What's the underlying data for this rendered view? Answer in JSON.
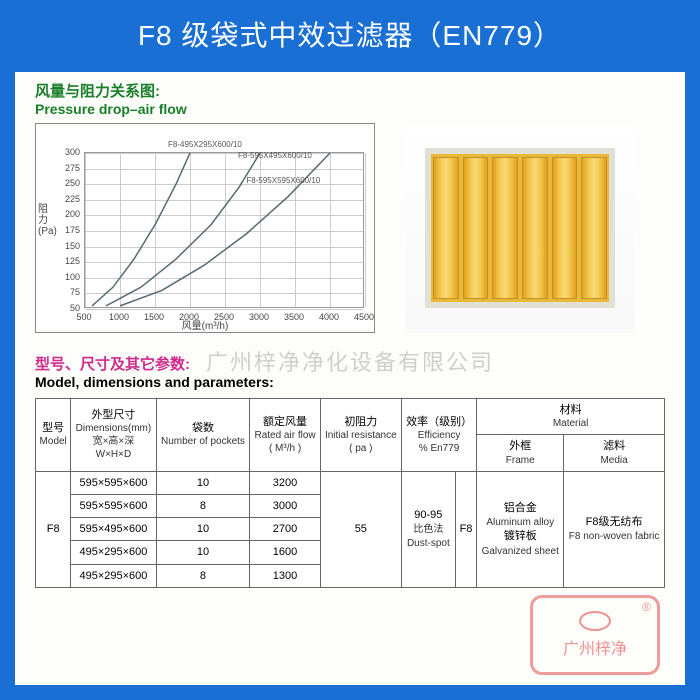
{
  "title": "F8 级袋式中效过滤器（EN779）",
  "chart_section": {
    "heading_cn": "风量与阻力关系图:",
    "heading_en": "Pressure drop–air flow",
    "ylabel_cn": "阻\n力",
    "ylabel_unit": "(Pa)",
    "xlabel": "风量(m³/h)",
    "xlim": [
      500,
      4500
    ],
    "ylim": [
      50,
      300
    ],
    "xticks": [
      500,
      1000,
      1500,
      2000,
      2500,
      3000,
      3500,
      4000,
      4500
    ],
    "yticks": [
      50,
      75,
      100,
      125,
      150,
      175,
      200,
      225,
      250,
      275,
      300
    ],
    "series": [
      {
        "label": "F8-495X295X600/10",
        "label_pos": {
          "x": 0.3,
          "y": 0.05
        },
        "points": [
          [
            600,
            55
          ],
          [
            900,
            85
          ],
          [
            1200,
            130
          ],
          [
            1500,
            185
          ],
          [
            1800,
            250
          ],
          [
            2000,
            300
          ]
        ]
      },
      {
        "label": "F8-595X495X600/10",
        "label_pos": {
          "x": 0.55,
          "y": 0.12
        },
        "points": [
          [
            800,
            55
          ],
          [
            1300,
            85
          ],
          [
            1800,
            130
          ],
          [
            2300,
            185
          ],
          [
            2700,
            245
          ],
          [
            3000,
            300
          ]
        ]
      },
      {
        "label": "F8-595X595X600/10",
        "label_pos": {
          "x": 0.58,
          "y": 0.28
        },
        "points": [
          [
            1000,
            55
          ],
          [
            1600,
            80
          ],
          [
            2200,
            120
          ],
          [
            2800,
            170
          ],
          [
            3400,
            230
          ],
          [
            4000,
            300
          ]
        ]
      }
    ],
    "line_color": "#556a74",
    "grid_color": "#cccccc",
    "background": "#ffffff"
  },
  "product": {
    "pockets": 6,
    "color": "#f4cb52"
  },
  "watermark": "广州梓净净化设备有限公司",
  "spec_section": {
    "heading_cn": "型号、尺寸及其它参数:",
    "heading_en": "Model, dimensions and parameters:"
  },
  "table": {
    "headers": {
      "model": {
        "cn": "型号",
        "en": "Model"
      },
      "dims": {
        "cn": "外型尺寸",
        "en": "Dimensions(mm)",
        "sub": "宽×高×深",
        "sub_en": "W×H×D"
      },
      "pockets": {
        "cn": "袋数",
        "en": "Number of pockets"
      },
      "airflow": {
        "cn": "额定风量",
        "en": "Rated air flow",
        "unit": "( M³/h )"
      },
      "resistance": {
        "cn": "初阻力",
        "en": "Initial resistance",
        "unit": "( pa )"
      },
      "efficiency": {
        "cn": "效率（级别）",
        "en": "Efficiency",
        "unit": "% En779"
      },
      "material": {
        "cn": "材料",
        "en": "Material"
      },
      "frame": {
        "cn": "外框",
        "en": "Frame"
      },
      "media": {
        "cn": "滤料",
        "en": "Media"
      }
    },
    "rows": [
      {
        "dims": "595×595×600",
        "pockets": "10",
        "airflow": "3200"
      },
      {
        "dims": "595×595×600",
        "pockets": "8",
        "airflow": "3000"
      },
      {
        "dims": "595×495×600",
        "pockets": "10",
        "airflow": "2700"
      },
      {
        "dims": "495×295×600",
        "pockets": "10",
        "airflow": "1600"
      },
      {
        "dims": "495×295×600",
        "pockets": "8",
        "airflow": "1300"
      }
    ],
    "model": "F8",
    "resistance": "55",
    "eff_range": "90-95",
    "eff_method_cn": "比色法",
    "eff_method_en": "Dust-spot",
    "eff_class": "F8",
    "frame_cn1": "铝合金",
    "frame_en1": "Aluminum alloy",
    "frame_cn2": "镀锌板",
    "frame_en2": "Galvanized sheet",
    "media_cn": "F8级无纺布",
    "media_en": "F8 non-woven fabric"
  },
  "stamp": {
    "text": "广州梓净",
    "reg": "®"
  }
}
